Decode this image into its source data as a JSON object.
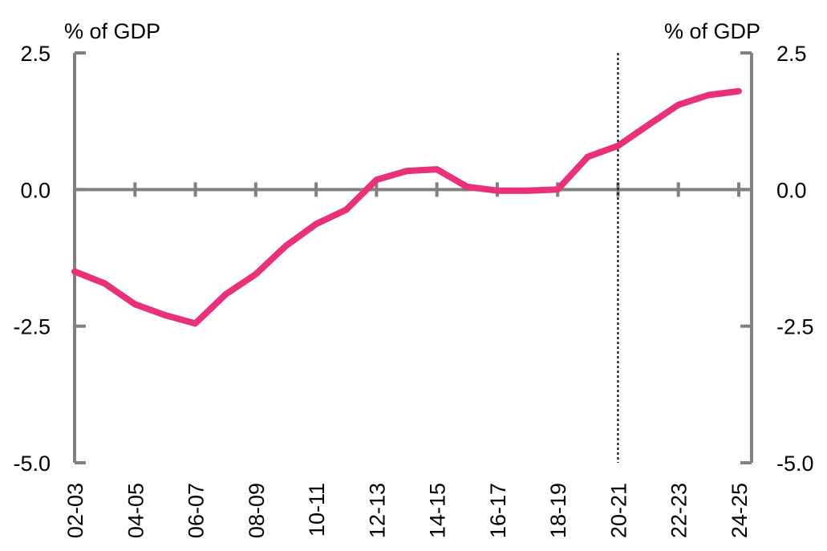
{
  "chart_data": {
    "type": "line",
    "left_axis_unit": "% of GDP",
    "right_axis_unit": "% of GDP",
    "ylim": [
      -5.0,
      2.5
    ],
    "y_ticks": [
      2.5,
      0.0,
      -2.5,
      -5.0
    ],
    "y_tick_labels": [
      "2.5",
      "0.0",
      "-2.5",
      "-5.0"
    ],
    "x_categories": [
      "02-03",
      "03-04",
      "04-05",
      "05-06",
      "06-07",
      "07-08",
      "08-09",
      "09-10",
      "10-11",
      "11-12",
      "12-13",
      "13-14",
      "14-15",
      "15-16",
      "16-17",
      "17-18",
      "18-19",
      "19-20",
      "20-21",
      "21-22",
      "22-23",
      "23-24",
      "24-25"
    ],
    "x_tick_labels": [
      "02-03",
      "04-05",
      "06-07",
      "08-09",
      "10-11",
      "12-13",
      "14-15",
      "16-17",
      "18-19",
      "20-21",
      "22-23",
      "24-25"
    ],
    "series": [
      {
        "values": [
          -1.5,
          -1.72,
          -2.1,
          -2.3,
          -2.45,
          -1.92,
          -1.55,
          -1.03,
          -0.63,
          -0.37,
          0.18,
          0.34,
          0.37,
          0.05,
          -0.02,
          -0.02,
          0.0,
          0.6,
          0.8,
          1.18,
          1.55,
          1.73,
          1.8
        ],
        "color": "#e8317a"
      }
    ],
    "forecast_marker_category": "20-21",
    "grid": false,
    "legend": "none"
  }
}
